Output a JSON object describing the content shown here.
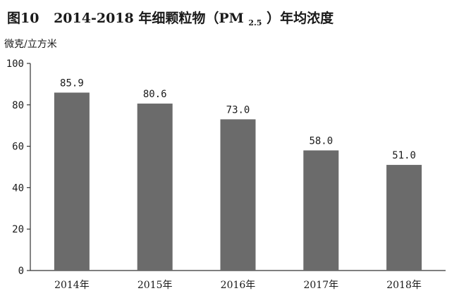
{
  "chart_data": {
    "type": "bar",
    "title": {
      "prefix": "图10",
      "years": "2014-2018",
      "text_before_sub": "年细颗粒物（PM",
      "subscript": "2.5",
      "text_after_sub": "）年均浓度"
    },
    "ylabel": "微克/立方米",
    "xlabel": "",
    "categories": [
      "2014年",
      "2015年",
      "2016年",
      "2017年",
      "2018年"
    ],
    "values": [
      85.9,
      80.6,
      73.0,
      58.0,
      51.0
    ],
    "data_labels": [
      "85.9",
      "80.6",
      "73.0",
      "58.0",
      "51.0"
    ],
    "ylim": [
      0,
      100
    ],
    "yticks": [
      0,
      20,
      40,
      60,
      80,
      100
    ],
    "grid": false,
    "legend": "none",
    "bar_color": "#6b6b6b",
    "axis_color": "#333333"
  }
}
